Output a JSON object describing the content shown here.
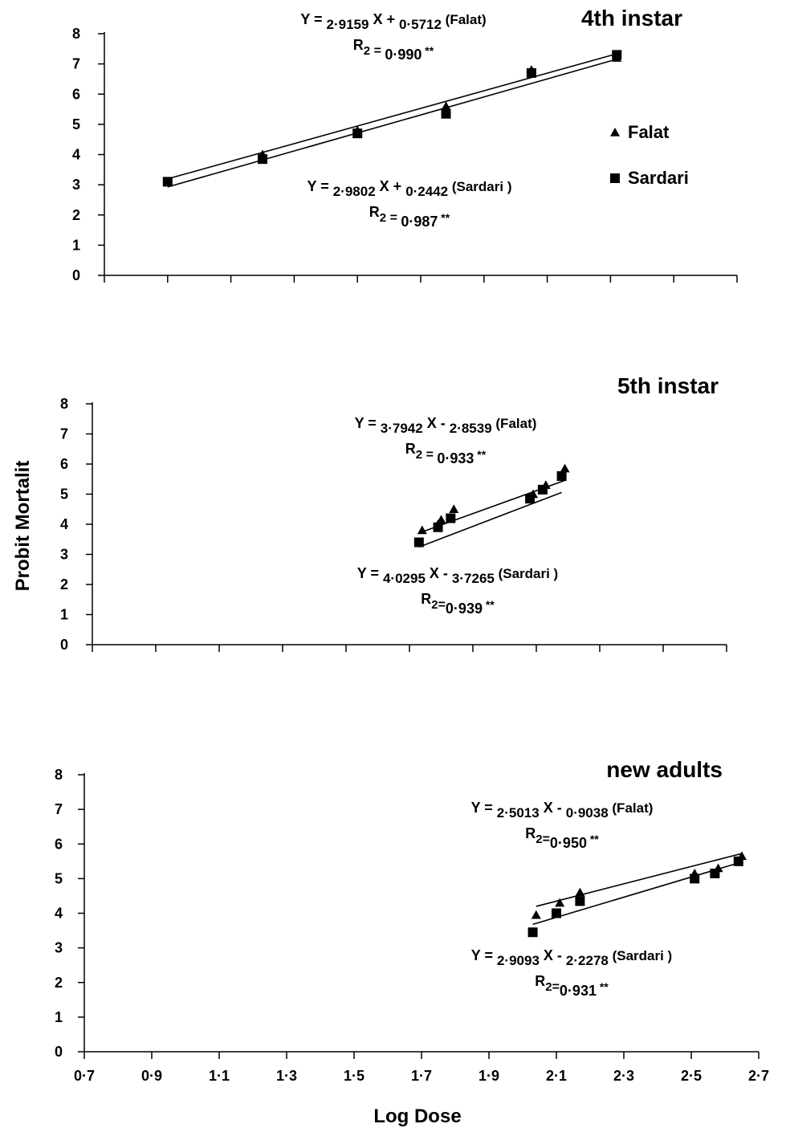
{
  "chart_data": [
    {
      "type": "scatter",
      "title": "4th instar",
      "xlim": [
        0.7,
        2.7
      ],
      "ylim": [
        0,
        8
      ],
      "y_ticks": [
        "0",
        "1",
        "2",
        "3",
        "4",
        "5",
        "6",
        "7",
        "8"
      ],
      "show_x_tick_labels": false,
      "legend": {
        "position": "right",
        "entries": [
          {
            "label": "Falat",
            "marker": "triangle"
          },
          {
            "label": "Sardari",
            "marker": "square"
          }
        ]
      },
      "series": [
        {
          "name": "Falat",
          "marker": "triangle",
          "x": [
            0.9,
            1.2,
            1.5,
            1.78,
            2.05,
            2.32
          ],
          "y": [
            3.1,
            4.0,
            4.8,
            5.6,
            6.8,
            7.2
          ],
          "fit": {
            "slope": 2.9159,
            "intercept": 0.5712,
            "x_range": [
              0.9,
              2.32
            ]
          }
        },
        {
          "name": "Sardari",
          "marker": "square",
          "x": [
            0.9,
            1.2,
            1.5,
            1.78,
            2.05,
            2.32
          ],
          "y": [
            3.1,
            3.85,
            4.7,
            5.35,
            6.7,
            7.3
          ],
          "fit": {
            "slope": 2.9802,
            "intercept": 0.2442,
            "x_range": [
              0.9,
              2.32
            ]
          }
        }
      ],
      "annotations": [
        {
          "parts": [
            "Y = ",
            "2·9159",
            " X + ",
            "0·5712",
            "   (Falat)"
          ]
        },
        {
          "parts": [
            "R",
            "2",
            " = ",
            "0·990",
            " **"
          ]
        },
        {
          "parts": [
            "Y = ",
            "2·9802",
            " X + ",
            "0·2442",
            "   (Sardari  )"
          ]
        },
        {
          "parts": [
            "R",
            "2",
            " = ",
            "0·987",
            " **"
          ]
        }
      ]
    },
    {
      "type": "scatter",
      "title": "5th instar",
      "xlim": [
        0.7,
        2.7
      ],
      "ylim": [
        0,
        8
      ],
      "y_ticks": [
        "0",
        "1",
        "2",
        "3",
        "4",
        "5",
        "6",
        "7",
        "8"
      ],
      "show_x_tick_labels": false,
      "series": [
        {
          "name": "Falat",
          "marker": "triangle",
          "x": [
            1.74,
            1.79,
            1.8,
            1.84,
            2.09,
            2.13,
            2.19
          ],
          "y": [
            3.8,
            4.0,
            4.15,
            4.5,
            5.0,
            5.3,
            5.85
          ],
          "fit": {
            "slope": 3.7942,
            "intercept": -2.8539,
            "x_range": [
              1.74,
              2.19
            ]
          }
        },
        {
          "name": "Sardari",
          "marker": "square",
          "x": [
            1.73,
            1.79,
            1.83,
            2.08,
            2.12,
            2.18
          ],
          "y": [
            3.4,
            3.9,
            4.2,
            4.85,
            5.15,
            5.6
          ],
          "fit": {
            "slope": 4.0295,
            "intercept": -3.7265,
            "x_range": [
              1.73,
              2.18
            ]
          }
        }
      ],
      "annotations": [
        {
          "parts": [
            "Y = ",
            "3·7942",
            " X - ",
            "2·8539",
            "   (Falat)"
          ]
        },
        {
          "parts": [
            "R",
            "2",
            " = ",
            "0·933",
            " **"
          ]
        },
        {
          "parts": [
            "Y = ",
            "4·0295",
            " X - ",
            "3·7265",
            "   (Sardari  )"
          ]
        },
        {
          "parts": [
            "R",
            "2",
            "=",
            "0·939",
            " **"
          ]
        }
      ]
    },
    {
      "type": "scatter",
      "title": "new adults",
      "xlabel": "Log Dose",
      "ylabel": "Probit Mortalit",
      "xlim": [
        0.7,
        2.7
      ],
      "ylim": [
        0,
        8
      ],
      "x_ticks": [
        "0·7",
        "0·9",
        "1·1",
        "1·3",
        "1·5",
        "1·7",
        "1·9",
        "2·1",
        "2·3",
        "2·5",
        "2·7"
      ],
      "y_ticks": [
        "0",
        "1",
        "2",
        "3",
        "4",
        "5",
        "6",
        "7",
        "8"
      ],
      "series": [
        {
          "name": "Falat",
          "marker": "triangle",
          "x": [
            2.04,
            2.11,
            2.17,
            2.51,
            2.58,
            2.65
          ],
          "y": [
            3.95,
            4.3,
            4.6,
            5.15,
            5.3,
            5.65
          ],
          "fit": {
            "slope": 2.5013,
            "intercept": -0.9038,
            "x_range": [
              2.04,
              2.65
            ]
          }
        },
        {
          "name": "Sardari",
          "marker": "square",
          "x": [
            2.03,
            2.1,
            2.17,
            2.51,
            2.57,
            2.64
          ],
          "y": [
            3.45,
            4.0,
            4.35,
            5.0,
            5.15,
            5.5
          ],
          "fit": {
            "slope": 2.9093,
            "intercept": -2.2278,
            "x_range": [
              2.03,
              2.64
            ]
          }
        }
      ],
      "annotations": [
        {
          "parts": [
            "Y = ",
            "2·5013",
            " X - ",
            "0·9038",
            "   (Falat)"
          ]
        },
        {
          "parts": [
            "R",
            "2",
            "=",
            "0·950",
            " **"
          ]
        },
        {
          "parts": [
            "Y = ",
            "2·9093",
            " X - ",
            "2·2278",
            "   (Sardari  )"
          ]
        },
        {
          "parts": [
            "R",
            "2",
            "=",
            "0·931",
            " **"
          ]
        }
      ]
    }
  ]
}
